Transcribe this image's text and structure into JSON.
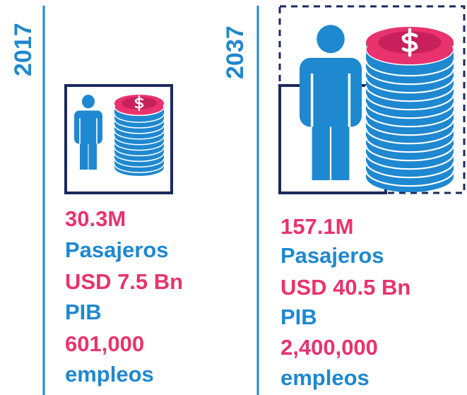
{
  "columns": [
    {
      "year": "2017",
      "stats": [
        {
          "value": "30.3M",
          "label": "Pasajeros"
        },
        {
          "value": "USD 7.5 Bn",
          "label": "PIB"
        },
        {
          "value": "601,000",
          "label": "empleos"
        }
      ]
    },
    {
      "year": "2037",
      "stats": [
        {
          "value": "157.1M",
          "label": "Pasajeros"
        },
        {
          "value": "USD 40.5 Bn",
          "label": "PIB"
        },
        {
          "value": "2,400,000",
          "label": "empleos"
        }
      ]
    }
  ]
}
